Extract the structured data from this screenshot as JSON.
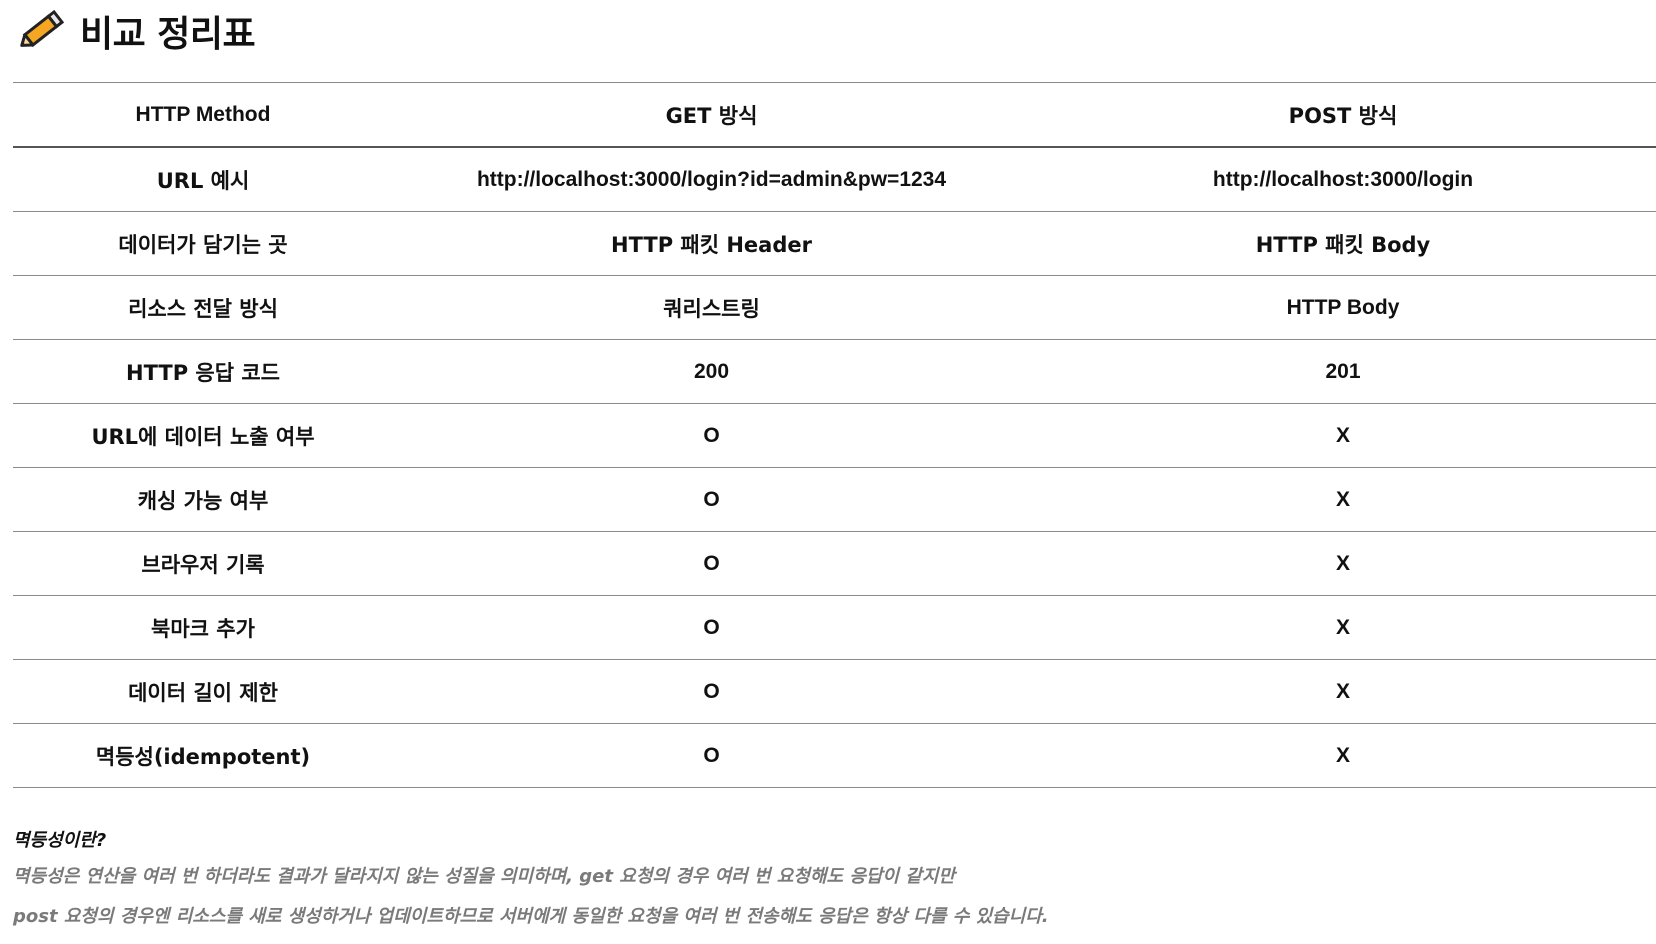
{
  "header": {
    "icon": "pencil-icon",
    "title": "비교 정리표"
  },
  "table": {
    "columns": [
      "HTTP Method",
      "GET 방식",
      "POST 방식"
    ],
    "rows": [
      [
        "URL 예시",
        "http://localhost:3000/login?id=admin&pw=1234",
        "http://localhost:3000/login"
      ],
      [
        "데이터가 담기는 곳",
        "HTTP 패킷 Header",
        "HTTP 패킷 Body"
      ],
      [
        "리소스 전달 방식",
        "쿼리스트링",
        "HTTP Body"
      ],
      [
        "HTTP 응답 코드",
        "200",
        "201"
      ],
      [
        "URL에 데이터 노출 여부",
        "O",
        "X"
      ],
      [
        "캐싱 가능 여부",
        "O",
        "X"
      ],
      [
        "브라우저 기록",
        "O",
        "X"
      ],
      [
        "북마크 추가",
        "O",
        "X"
      ],
      [
        "데이터 길이 제한",
        "O",
        "X"
      ],
      [
        "멱등성(idempotent)",
        "O",
        "X"
      ]
    ]
  },
  "note": {
    "title": "멱등성이란?",
    "lines": [
      "멱등성은 연산을 여러 번 하더라도 결과가 달라지지 않는 성질을 의미하며, get 요청의 경우 여러 번 요청해도 응답이 같지만",
      "post 요청의 경우엔 리소스를 새로 생성하거나 업데이트하므로 서버에게 동일한 요청을 여러 번 전송해도 응답은 항상 다를 수 있습니다."
    ]
  },
  "colors": {
    "text": "#111111",
    "note_text": "#7a7a7a",
    "rule": "#8a8a8a",
    "pencil_body": "#f5a623",
    "pencil_outline": "#222222"
  }
}
